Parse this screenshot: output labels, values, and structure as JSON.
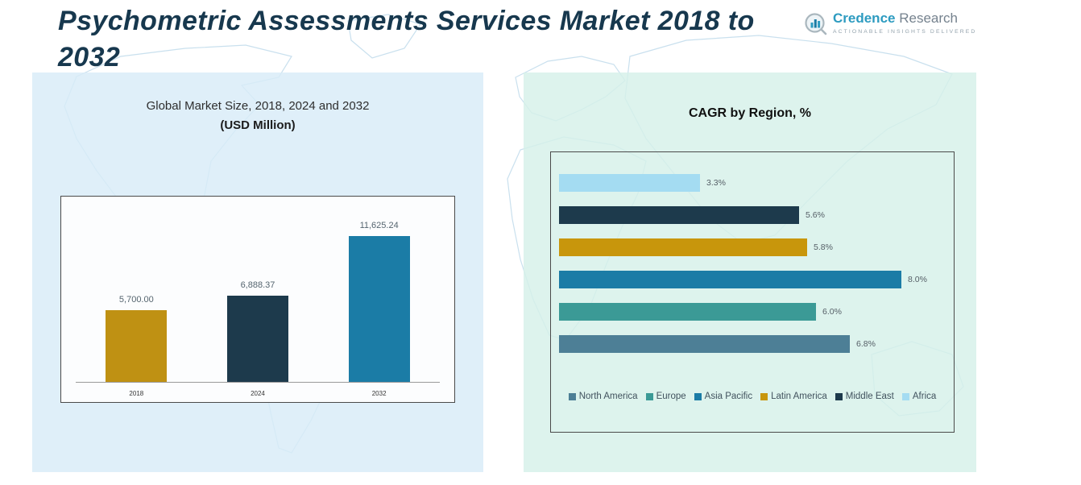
{
  "page": {
    "title": "Psychometric Assessments Services Market 2018 to 2032"
  },
  "logo": {
    "brand_primary": "Credence",
    "brand_secondary": "Research",
    "tagline": "Actionable Insights Delivered"
  },
  "chart_data": [
    {
      "type": "bar",
      "title": "Global Market Size, 2018, 2024 and 2032",
      "subtitle": "(USD Million)",
      "categories": [
        "2018",
        "2024",
        "2032"
      ],
      "values": [
        5700.0,
        6888.37,
        11625.24
      ],
      "value_labels": [
        "5,700.00",
        "6,888.37",
        "11,625.24"
      ],
      "colors": [
        "#bf9113",
        "#1d3a4c",
        "#1b7ca6"
      ],
      "ylim": [
        0,
        12000
      ],
      "grid": false,
      "legend_position": "none"
    },
    {
      "type": "bar",
      "orientation": "horizontal",
      "title": "CAGR by Region, %",
      "categories": [
        "Africa",
        "Middle East",
        "Latin America",
        "Asia Pacific",
        "Europe",
        "North America"
      ],
      "values": [
        3.3,
        5.6,
        5.8,
        8.0,
        6.0,
        6.8
      ],
      "value_labels": [
        "3.3%",
        "5.6%",
        "5.8%",
        "8.0%",
        "6.0%",
        "6.8%"
      ],
      "colors": [
        "#a4dcf2",
        "#1d3a4c",
        "#c8960c",
        "#1b7ca6",
        "#3b9a96",
        "#4d7f96"
      ],
      "xlim": [
        0,
        9
      ],
      "grid": false,
      "legend_position": "bottom",
      "legend": [
        {
          "label": "North America",
          "color": "#4d7f96"
        },
        {
          "label": "Europe",
          "color": "#3b9a96"
        },
        {
          "label": "Asia Pacific",
          "color": "#1b7ca6"
        },
        {
          "label": "Latin America",
          "color": "#c8960c"
        },
        {
          "label": "Middle East",
          "color": "#1d3a4c"
        },
        {
          "label": "Africa",
          "color": "#a4dcf2"
        }
      ]
    }
  ]
}
